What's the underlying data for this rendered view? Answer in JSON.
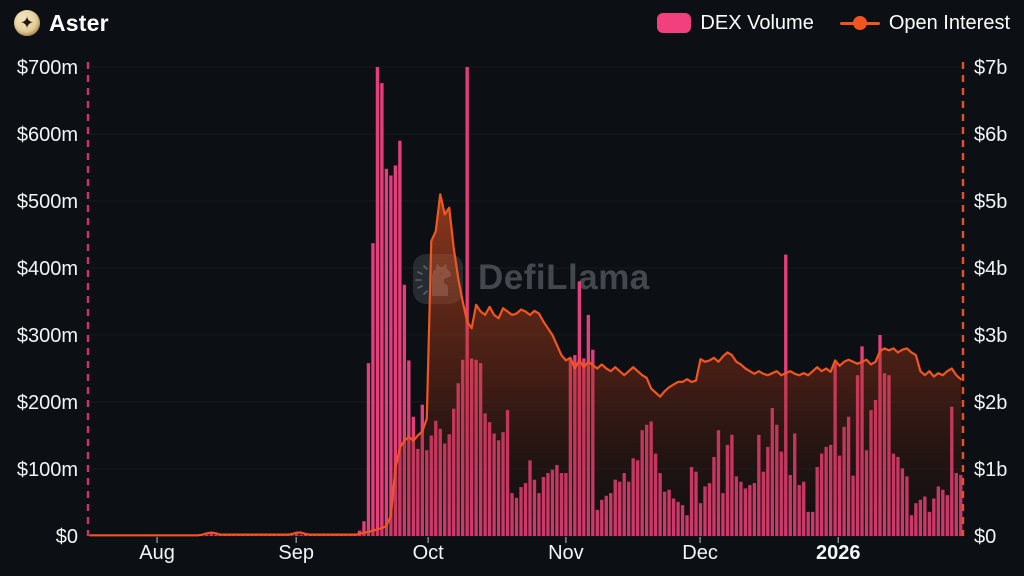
{
  "header": {
    "title": "Aster"
  },
  "legend": {
    "items": [
      {
        "label": "DEX Volume",
        "type": "bar",
        "color": "#f2407e"
      },
      {
        "label": "Open Interest",
        "type": "line",
        "color": "#f2561f"
      }
    ]
  },
  "watermark": {
    "text": "DefiLlama"
  },
  "colors": {
    "background": "#0c1014",
    "bar": "#e63e7a",
    "line": "#f2561f",
    "left_axis_marker": "#d2306a",
    "right_axis_marker": "#e8502a",
    "gridline": "rgba(255,255,255,0.045)",
    "tick": "#8a9096"
  },
  "chart_data": {
    "type": "bar+line combo, daily time series",
    "title": "Aster — DEX Volume vs Open Interest",
    "x_axis": {
      "range_visible": "mid-Jul 2025 to late Jan 2026",
      "n_points": 195,
      "ticks": [
        {
          "label": "Aug",
          "day": 15.4,
          "bold": false
        },
        {
          "label": "Sep",
          "day": 46.4,
          "bold": false
        },
        {
          "label": "Oct",
          "day": 75.8,
          "bold": false
        },
        {
          "label": "Nov",
          "day": 106.5,
          "bold": false
        },
        {
          "label": "Dec",
          "day": 136.4,
          "bold": false
        },
        {
          "label": "2026",
          "day": 167.2,
          "bold": true
        }
      ]
    },
    "y_left": {
      "labels": [
        "$0",
        "$100m",
        "$200m",
        "$300m",
        "$400m",
        "$500m",
        "$600m",
        "$700m"
      ],
      "min": 0,
      "max": 700,
      "unit": "$m"
    },
    "y_right": {
      "labels": [
        "$0",
        "$1b",
        "$2b",
        "$3b",
        "$4b",
        "$5b",
        "$6b",
        "$7b"
      ],
      "min": 0,
      "max": 7,
      "unit": "$b"
    },
    "grid": "faint horizontal lines at each left-axis step",
    "legend_position": "top-right",
    "series": [
      {
        "name": "DEX Volume",
        "type": "bar",
        "axis": "left",
        "unit": "$m",
        "color": "#e63e7a",
        "values": [
          0,
          0,
          0,
          0,
          0,
          0,
          0,
          0,
          0,
          0,
          0,
          0,
          0,
          0,
          0,
          0,
          0,
          0,
          0,
          0,
          0,
          0,
          0,
          0,
          0,
          0,
          2,
          3,
          2,
          2,
          3,
          2,
          2,
          3,
          2,
          2,
          2,
          3,
          2,
          2,
          2,
          1,
          1,
          2,
          1,
          1,
          3,
          2,
          2,
          1,
          1,
          1,
          2,
          1,
          1,
          2,
          2,
          1,
          1,
          3,
          8,
          22,
          258,
          437,
          700,
          676,
          548,
          538,
          553,
          590,
          375,
          262,
          178,
          130,
          196,
          128,
          150,
          172,
          160,
          138,
          152,
          190,
          228,
          263,
          700,
          265,
          263,
          258,
          183,
          170,
          153,
          143,
          155,
          188,
          64,
          57,
          73,
          79,
          113,
          84,
          64,
          88,
          94,
          99,
          106,
          94,
          94,
          263,
          270,
          380,
          265,
          330,
          278,
          39,
          54,
          60,
          64,
          84,
          81,
          94,
          81,
          116,
          113,
          158,
          166,
          171,
          123,
          94,
          66,
          69,
          56,
          51,
          46,
          31,
          103,
          96,
          49,
          74,
          79,
          118,
          158,
          64,
          136,
          151,
          89,
          81,
          71,
          76,
          79,
          151,
          96,
          133,
          191,
          166,
          126,
          420,
          91,
          153,
          76,
          81,
          36,
          36,
          103,
          123,
          133,
          136,
          258,
          120,
          163,
          178,
          90,
          240,
          283,
          128,
          188,
          203,
          300,
          243,
          240,
          123,
          118,
          101,
          89,
          31,
          49,
          54,
          59,
          36,
          56,
          74,
          69,
          61,
          193,
          94,
          91
        ]
      },
      {
        "name": "Open Interest",
        "type": "line",
        "axis": "right",
        "unit": "$b",
        "color": "#f2561f",
        "values": [
          0.01,
          0.01,
          0.01,
          0.01,
          0.01,
          0.01,
          0.01,
          0.01,
          0.01,
          0.01,
          0.01,
          0.01,
          0.01,
          0.01,
          0.01,
          0.01,
          0.01,
          0.01,
          0.01,
          0.01,
          0.01,
          0.01,
          0.01,
          0.01,
          0.01,
          0.02,
          0.04,
          0.05,
          0.04,
          0.02,
          0.02,
          0.02,
          0.02,
          0.02,
          0.02,
          0.02,
          0.02,
          0.02,
          0.02,
          0.02,
          0.02,
          0.02,
          0.02,
          0.02,
          0.02,
          0.03,
          0.05,
          0.05,
          0.03,
          0.02,
          0.02,
          0.02,
          0.02,
          0.02,
          0.02,
          0.02,
          0.02,
          0.02,
          0.02,
          0.02,
          0.03,
          0.05,
          0.06,
          0.08,
          0.1,
          0.12,
          0.15,
          0.3,
          1.0,
          1.32,
          1.42,
          1.48,
          1.42,
          1.5,
          1.56,
          1.75,
          4.4,
          4.55,
          5.1,
          4.8,
          4.9,
          4.3,
          3.85,
          3.5,
          3.2,
          3.1,
          3.45,
          3.35,
          3.3,
          3.42,
          3.3,
          3.25,
          3.4,
          3.35,
          3.3,
          3.32,
          3.38,
          3.35,
          3.3,
          3.36,
          3.32,
          3.2,
          3.1,
          3.0,
          2.85,
          2.7,
          2.62,
          2.66,
          2.5,
          2.62,
          2.52,
          2.6,
          2.55,
          2.5,
          2.56,
          2.5,
          2.46,
          2.52,
          2.46,
          2.4,
          2.46,
          2.52,
          2.46,
          2.4,
          2.36,
          2.2,
          2.14,
          2.08,
          2.16,
          2.22,
          2.26,
          2.3,
          2.3,
          2.34,
          2.3,
          2.32,
          2.64,
          2.6,
          2.62,
          2.66,
          2.6,
          2.68,
          2.74,
          2.7,
          2.6,
          2.56,
          2.5,
          2.46,
          2.42,
          2.46,
          2.42,
          2.4,
          2.43,
          2.46,
          2.4,
          2.43,
          2.46,
          2.42,
          2.4,
          2.43,
          2.4,
          2.46,
          2.52,
          2.46,
          2.5,
          2.45,
          2.62,
          2.54,
          2.6,
          2.63,
          2.6,
          2.57,
          2.6,
          2.63,
          2.56,
          2.6,
          2.76,
          2.8,
          2.77,
          2.8,
          2.74,
          2.78,
          2.8,
          2.74,
          2.7,
          2.46,
          2.4,
          2.46,
          2.38,
          2.43,
          2.4,
          2.46,
          2.5,
          2.4,
          2.34
        ]
      }
    ]
  }
}
